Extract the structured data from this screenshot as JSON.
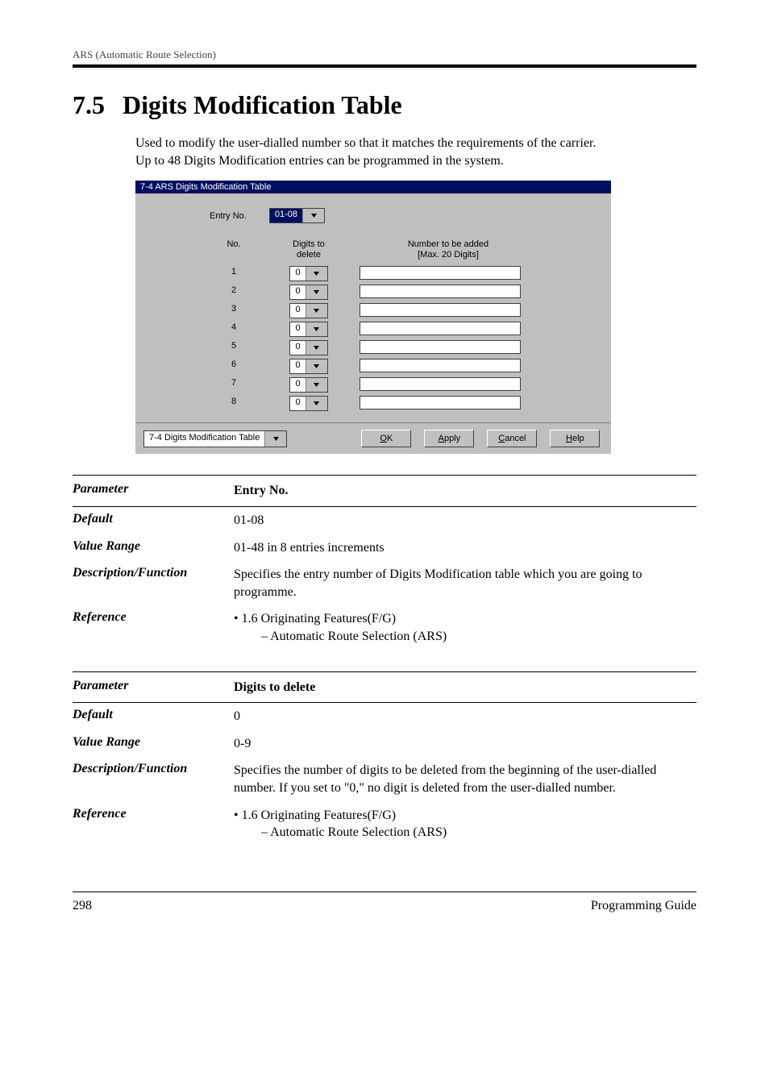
{
  "running_header": "ARS (Automatic Route Selection)",
  "section_number": "7.5",
  "section_title": "Digits Modification Table",
  "intro_line1": "Used to modify the user-dialled number so that it matches the requirements of the carrier.",
  "intro_line2": "Up to 48 Digits Modification entries can be programmed in the system.",
  "screenshot": {
    "window_title": "7-4 ARS Digits Modification Table",
    "entry_label": "Entry No.",
    "entry_value": "01-08",
    "col_no": "No.",
    "col_digits": "Digits to\ndelete",
    "col_number": "Number to be added\n[Max. 20 Digits]",
    "rows": [
      {
        "no": "1",
        "digits": "0"
      },
      {
        "no": "2",
        "digits": "0"
      },
      {
        "no": "3",
        "digits": "0"
      },
      {
        "no": "4",
        "digits": "0"
      },
      {
        "no": "5",
        "digits": "0"
      },
      {
        "no": "6",
        "digits": "0"
      },
      {
        "no": "7",
        "digits": "0"
      },
      {
        "no": "8",
        "digits": "0"
      }
    ],
    "page_select": "7-4 Digits Modification Table",
    "btn_ok": "OK",
    "btn_apply": "Apply",
    "btn_cancel": "Cancel",
    "btn_help": "Help"
  },
  "param1": {
    "name_label": "Parameter",
    "name_value": "Entry No.",
    "default_label": "Default",
    "default_value": "01-08",
    "range_label": "Value Range",
    "range_value": "01-48 in 8 entries increments",
    "desc_label": "Description/Function",
    "desc_value": "Specifies the entry number of Digits Modification table which you are going to programme.",
    "ref_label": "Reference",
    "ref_bullet": "• 1.6 Originating Features(F/G)",
    "ref_sub": "– Automatic Route Selection (ARS)"
  },
  "param2": {
    "name_label": "Parameter",
    "name_value": "Digits to delete",
    "default_label": "Default",
    "default_value": "0",
    "range_label": "Value Range",
    "range_value": "0-9",
    "desc_label": "Description/Function",
    "desc_value": "Specifies the number of digits to be deleted from the beginning of the user-dialled number. If you set to \"0,\" no digit is deleted from the user-dialled number.",
    "ref_label": "Reference",
    "ref_bullet": "• 1.6 Originating Features(F/G)",
    "ref_sub": "– Automatic Route Selection (ARS)"
  },
  "footer_page": "298",
  "footer_doc": "Programming Guide"
}
